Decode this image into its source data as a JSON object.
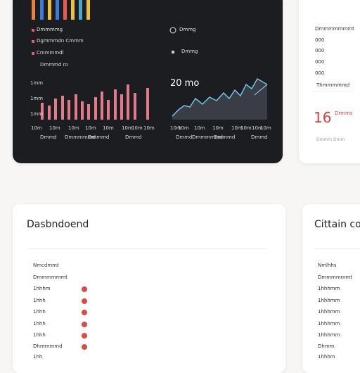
{
  "dark_panel": {
    "legend": [
      "Dmmmmg",
      "Dgmmmdn Cmmm",
      "Cmmmmdl",
      "Dmmmd ro"
    ],
    "side_legend": [
      "Dmmg",
      "Dmmg"
    ],
    "bar_chart": {
      "y_labels": [
        "1mm",
        "1mm",
        "1mm"
      ],
      "x_labels": [
        "10m",
        "10m",
        "10m",
        "10m",
        "10m",
        "10m",
        "10m",
        "10m"
      ],
      "bottom_labels": [
        "Dmmd",
        "Dmmmmmd",
        "Dmmmd",
        "Dmmd"
      ]
    },
    "line_chart": {
      "title": "20 mo",
      "x_labels": [
        "10m",
        "10m",
        "10m",
        "10m",
        "10m",
        "10m",
        "10m",
        "10m"
      ],
      "bottom_labels": [
        "Dmmd",
        "Dmmmmmd",
        "Dmmmd",
        "Dmmd"
      ]
    }
  },
  "side_card": {
    "title": "Dmmmmmmmt",
    "rows": [
      "000",
      "000",
      "000",
      "000"
    ],
    "subtitle": "Thmmmmmd",
    "big_number": "16",
    "big_label": "Drmms",
    "footer": "Dmmm Dmm"
  },
  "left_card": {
    "title": "Dasbndoend",
    "rows": [
      "Nmcdmmt",
      "Dmmmmmmt",
      "1hhhm",
      "1hhh",
      "1hhh",
      "1hhh",
      "1hhh",
      "Dhmmmmd",
      "1hh"
    ]
  },
  "right_card": {
    "title": "Cittain co",
    "rows": [
      "Nmlhhs",
      "Dmmmmmmt",
      "1hhhmm",
      "1hhhmm",
      "1hhhmm",
      "1hhhmm",
      "1hhhmm",
      "Dhmm",
      "1hhhm"
    ]
  }
}
